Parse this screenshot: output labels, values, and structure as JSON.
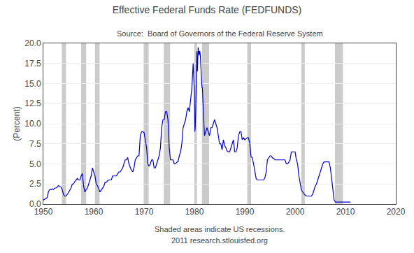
{
  "chart_data": {
    "type": "line",
    "title": "Effective Federal Funds Rate (FEDFUNDS)",
    "subtitle": "Source:  Board of Governors of the Federal Reserve System",
    "ylabel": "(Percent)",
    "annotations": [
      "Shaded areas indicate US recessions.",
      "2011 research.stlouisfed.org"
    ],
    "xlim": [
      1950,
      2020
    ],
    "ylim": [
      0.0,
      20.0
    ],
    "xticks": [
      1950,
      1960,
      1970,
      1980,
      1990,
      2000,
      2010,
      2020
    ],
    "yticks": [
      {
        "value": 0,
        "label": "0.0"
      },
      2.5,
      {
        "value": 5,
        "label": "5.0"
      },
      7.5,
      {
        "value": 10,
        "label": "10.0"
      },
      12.5,
      {
        "value": 15,
        "label": "15.0"
      },
      17.5,
      {
        "value": 20,
        "label": "20.0"
      }
    ],
    "grid": "y",
    "color": "#0000cc",
    "recessions": {
      "color": "#a0a0a0",
      "ranges": [
        [
          1953.67,
          1954.5
        ],
        [
          1957.5,
          1958.5
        ],
        [
          1960.25,
          1961.17
        ],
        [
          1969.92,
          1970.92
        ],
        [
          1973.92,
          1975.17
        ],
        [
          1980.0,
          1980.5
        ],
        [
          1981.5,
          1982.92
        ],
        [
          1990.5,
          1991.25
        ],
        [
          2001.25,
          2001.92
        ],
        [
          2007.92,
          2009.5
        ]
      ]
    },
    "x": [
      1950.0,
      1950.25,
      1950.5,
      1950.75,
      1951.0,
      1951.25,
      1951.5,
      1951.75,
      1952.0,
      1952.25,
      1952.5,
      1952.75,
      1953.0,
      1953.25,
      1953.5,
      1953.75,
      1954.0,
      1954.25,
      1954.5,
      1954.75,
      1955.0,
      1955.25,
      1955.5,
      1955.75,
      1956.0,
      1956.25,
      1956.5,
      1956.75,
      1957.0,
      1957.25,
      1957.5,
      1957.75,
      1958.0,
      1958.25,
      1958.5,
      1958.75,
      1959.0,
      1959.25,
      1959.5,
      1959.75,
      1960.0,
      1960.25,
      1960.5,
      1960.75,
      1961.0,
      1961.25,
      1961.5,
      1961.75,
      1962.0,
      1962.25,
      1962.5,
      1962.75,
      1963.0,
      1963.25,
      1963.5,
      1963.75,
      1964.0,
      1964.25,
      1964.5,
      1964.75,
      1965.0,
      1965.25,
      1965.5,
      1965.75,
      1966.0,
      1966.25,
      1966.5,
      1966.75,
      1967.0,
      1967.25,
      1967.5,
      1967.75,
      1968.0,
      1968.25,
      1968.5,
      1968.75,
      1969.0,
      1969.25,
      1969.5,
      1969.75,
      1970.0,
      1970.25,
      1970.5,
      1970.75,
      1971.0,
      1971.25,
      1971.5,
      1971.75,
      1972.0,
      1972.25,
      1972.5,
      1972.75,
      1973.0,
      1973.25,
      1973.5,
      1973.75,
      1974.0,
      1974.25,
      1974.5,
      1974.75,
      1975.0,
      1975.25,
      1975.5,
      1975.75,
      1976.0,
      1976.25,
      1976.5,
      1976.75,
      1977.0,
      1977.25,
      1977.5,
      1977.75,
      1978.0,
      1978.25,
      1978.5,
      1978.75,
      1979.0,
      1979.25,
      1979.5,
      1979.75,
      1980.0,
      1980.08,
      1980.17,
      1980.25,
      1980.33,
      1980.42,
      1980.5,
      1980.58,
      1980.67,
      1980.75,
      1980.83,
      1980.92,
      1981.0,
      1981.08,
      1981.17,
      1981.25,
      1981.33,
      1981.42,
      1981.5,
      1981.58,
      1981.67,
      1981.75,
      1981.83,
      1981.92,
      1982.0,
      1982.25,
      1982.5,
      1982.75,
      1983.0,
      1983.25,
      1983.5,
      1983.75,
      1984.0,
      1984.25,
      1984.5,
      1984.75,
      1985.0,
      1985.25,
      1985.5,
      1985.75,
      1986.0,
      1986.25,
      1986.5,
      1986.75,
      1987.0,
      1987.25,
      1987.5,
      1987.75,
      1988.0,
      1988.25,
      1988.5,
      1988.75,
      1989.0,
      1989.25,
      1989.5,
      1989.75,
      1990.0,
      1990.25,
      1990.5,
      1990.75,
      1991.0,
      1991.25,
      1991.5,
      1991.75,
      1992.0,
      1992.25,
      1992.5,
      1992.75,
      1993.0,
      1993.25,
      1993.5,
      1993.75,
      1994.0,
      1994.25,
      1994.5,
      1994.75,
      1995.0,
      1995.25,
      1995.5,
      1995.75,
      1996.0,
      1996.25,
      1996.5,
      1996.75,
      1997.0,
      1997.25,
      1997.5,
      1997.75,
      1998.0,
      1998.25,
      1998.5,
      1998.75,
      1999.0,
      1999.25,
      1999.5,
      1999.75,
      2000.0,
      2000.25,
      2000.5,
      2000.75,
      2001.0,
      2001.25,
      2001.5,
      2001.75,
      2002.0,
      2002.25,
      2002.5,
      2002.75,
      2003.0,
      2003.25,
      2003.5,
      2003.75,
      2004.0,
      2004.25,
      2004.5,
      2004.75,
      2005.0,
      2005.25,
      2005.5,
      2005.75,
      2006.0,
      2006.25,
      2006.5,
      2006.75,
      2007.0,
      2007.25,
      2007.5,
      2007.75,
      2008.0,
      2008.25,
      2008.5,
      2008.75,
      2009.0,
      2009.25,
      2009.5,
      2009.75,
      2010.0,
      2010.25,
      2010.5,
      2010.75,
      2011.0
    ],
    "values": [
      0.5,
      0.6,
      0.7,
      0.8,
      1.5,
      1.8,
      1.8,
      1.9,
      1.8,
      2.0,
      2.0,
      2.1,
      2.3,
      2.2,
      2.1,
      1.8,
      1.2,
      1.0,
      1.0,
      1.2,
      1.5,
      1.8,
      2.0,
      2.5,
      2.5,
      2.8,
      3.0,
      3.2,
      3.0,
      3.0,
      3.5,
      3.8,
      2.2,
      1.5,
      1.8,
      2.0,
      2.5,
      3.0,
      3.5,
      4.5,
      3.9,
      3.5,
      2.5,
      2.3,
      1.9,
      1.5,
      1.75,
      2.0,
      2.2,
      2.7,
      2.7,
      2.9,
      3.0,
      3.0,
      3.0,
      3.5,
      3.5,
      3.5,
      3.5,
      3.75,
      4.0,
      4.0,
      4.2,
      4.5,
      5.0,
      5.5,
      5.5,
      5.8,
      5.0,
      4.5,
      4.2,
      4.0,
      4.5,
      5.5,
      5.8,
      6.0,
      6.0,
      8.5,
      9.0,
      9.0,
      8.9,
      7.9,
      7.0,
      5.0,
      4.7,
      5.0,
      5.5,
      5.5,
      4.5,
      4.5,
      5.0,
      5.5,
      6.0,
      7.0,
      9.5,
      10.5,
      10.5,
      11.5,
      11.5,
      10.5,
      7.0,
      5.5,
      5.5,
      5.5,
      5.0,
      5.0,
      5.2,
      5.3,
      6.0,
      6.5,
      7.5,
      9.5,
      10.0,
      10.5,
      11.5,
      12.0,
      11.5,
      13.0,
      14.5,
      17.5,
      14.0,
      9.0,
      9.5,
      11.5,
      15.5,
      17.5,
      19.0,
      16.5,
      18.5,
      19.5,
      19.0,
      18.5,
      19.0,
      19.0,
      18.5,
      17.5,
      15.5,
      15.0,
      14.5,
      14.5,
      13.0,
      12.5,
      11.5,
      9.5,
      8.5,
      9.0,
      9.5,
      9.0,
      8.5,
      9.5,
      9.5,
      10.0,
      10.5,
      10.0,
      9.5,
      8.5,
      7.5,
      7.5,
      6.75,
      8.0,
      7.3,
      7.0,
      6.6,
      6.5,
      6.5,
      7.0,
      7.5,
      8.0,
      6.5,
      6.5,
      7.0,
      8.5,
      9.0,
      9.0,
      8.0,
      8.25,
      8.0,
      8.1,
      8.25,
      8.25,
      7.5,
      5.9,
      5.75,
      5.0,
      4.0,
      3.2,
      3.0,
      3.0,
      3.0,
      3.0,
      3.0,
      3.0,
      3.25,
      4.0,
      5.5,
      5.75,
      6.0,
      6.0,
      5.75,
      5.7,
      5.5,
      5.5,
      5.5,
      5.5,
      5.5,
      5.5,
      5.5,
      5.5,
      5.5,
      5.0,
      5.0,
      5.2,
      5.5,
      6.5,
      6.5,
      6.5,
      6.5,
      5.5,
      5.0,
      3.5,
      2.5,
      1.75,
      1.5,
      1.25,
      1.1,
      1.0,
      1.0,
      1.0,
      1.0,
      1.0,
      1.25,
      1.75,
      2.25,
      2.5,
      3.0,
      3.5,
      4.0,
      4.5,
      5.0,
      5.25,
      5.25,
      5.25,
      5.25,
      5.25,
      4.5,
      3.0,
      2.0,
      0.5,
      0.25,
      0.25,
      0.25,
      0.25,
      0.25,
      0.25,
      0.25,
      0.25,
      0.25,
      0.25,
      0.25,
      0.25,
      0.25
    ]
  }
}
